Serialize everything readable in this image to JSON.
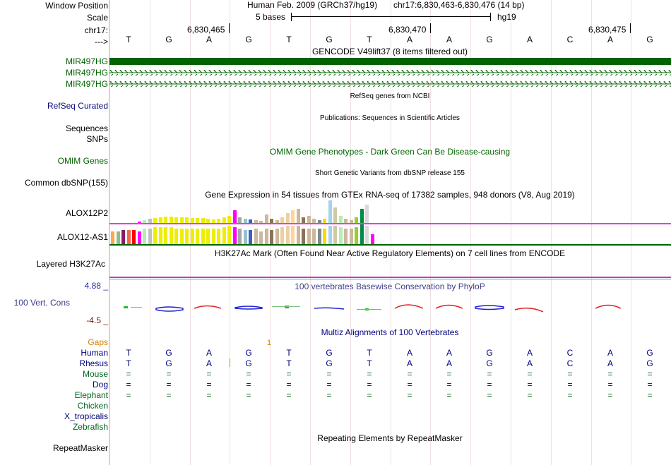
{
  "colors": {
    "gencode": "#006400",
    "refseq": "#0c0c78",
    "omim": "#006400",
    "conservation": "#3c3c88",
    "maxval": "#2b2bae",
    "minval": "#7a1b1b",
    "gaps": "#d08000",
    "human": "#000080",
    "mouse": "#00641e"
  },
  "header": {
    "labels": {
      "window_position": "Window Position",
      "scale": "Scale",
      "chrom": "chr17:",
      "direction": "--->"
    },
    "assembly": "Human Feb. 2009 (GRCh37/hg19)",
    "position": "chr17:6,830,463-6,830,476 (14 bp)",
    "scale_text": "5 bases",
    "scale_db": "hg19",
    "ruler": [
      "6,830,465",
      "6,830,470",
      "6,830,475"
    ],
    "bases": [
      "T",
      "G",
      "A",
      "G",
      "T",
      "G",
      "T",
      "A",
      "A",
      "G",
      "A",
      "C",
      "A",
      "G"
    ]
  },
  "gencode": {
    "title": "GENCODE V49lift37 (8 items filtered out)",
    "items": [
      "MIR497HG",
      "MIR497HG",
      "MIR497HG"
    ]
  },
  "refseq": {
    "title": "RefSeq genes from NCBI",
    "label": "RefSeq Curated"
  },
  "publications": {
    "title": "Publications: Sequences in Scientific Articles",
    "labels": [
      "Sequences",
      "SNPs"
    ]
  },
  "omim": {
    "title": "OMIM Gene Phenotypes - Dark Green Can Be Disease-causing",
    "label": "OMIM Genes"
  },
  "dbsnp": {
    "title": "Short Genetic Variants from dbSNP release 155",
    "label": "Common dbSNP(155)"
  },
  "gtex": {
    "title": "Gene Expression in 54 tissues from GTEx RNA-seq of 17382 samples, 948 donors (V8, Aug 2019)",
    "genes": [
      "ALOX12P2",
      "ALOX12-AS1"
    ]
  },
  "h3k27ac": {
    "title": "H3K27Ac Mark (Often Found Near Active Regulatory Elements) on 7 cell lines from ENCODE",
    "label": "Layered H3K27Ac"
  },
  "phylop": {
    "title": "100 vertebrates Basewise Conservation by PhyloP",
    "label": "100 Vert. Cons",
    "max": "4.88 _",
    "min": "-4.5 _"
  },
  "multiz": {
    "title": "Multiz Alignments of 100 Vertebrates",
    "gaps_label": "Gaps",
    "gap_marker": "1",
    "species": [
      "Human",
      "Rhesus",
      "Mouse",
      "Dog",
      "Elephant",
      "Chicken",
      "X_tropicalis",
      "Zebrafish"
    ]
  },
  "repeatmasker": {
    "title": "Repeating Elements by RepeatMasker",
    "label": "RepeatMasker"
  }
}
